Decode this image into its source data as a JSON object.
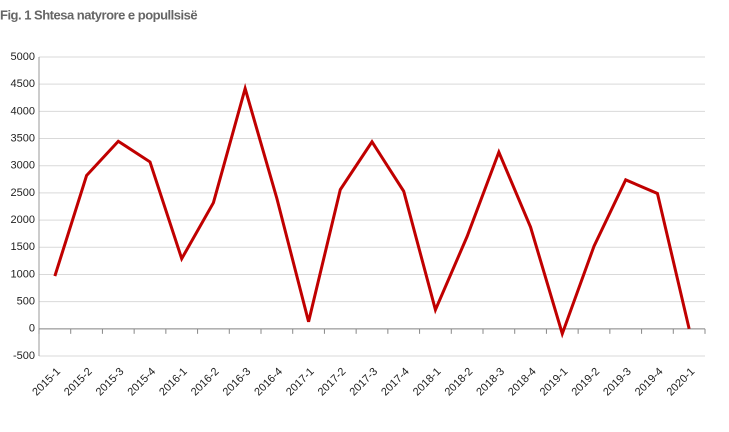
{
  "chart_data": {
    "type": "line",
    "title": "Fig. 1 Shtesa natyrore e popullsisë",
    "categories": [
      "2015-1",
      "2015-2",
      "2015-3",
      "2015-4",
      "2016-1",
      "2016-2",
      "2016-3",
      "2016-4",
      "2017-1",
      "2017-2",
      "2017-3",
      "2017-4",
      "2018-1",
      "2018-2",
      "2018-3",
      "2018-4",
      "2019-1",
      "2019-2",
      "2019-3",
      "2019-4",
      "2020-1"
    ],
    "values": [
      970,
      2820,
      3450,
      3070,
      1290,
      2320,
      4420,
      2400,
      130,
      2560,
      3440,
      2530,
      350,
      1700,
      3250,
      1870,
      -90,
      1520,
      2740,
      2490,
      0
    ],
    "color": "#c00000",
    "ylim": [
      -500,
      5000
    ],
    "yticks": [
      -500,
      0,
      500,
      1000,
      1500,
      2000,
      2500,
      3000,
      3500,
      4000,
      4500,
      5000
    ],
    "grid": true
  }
}
